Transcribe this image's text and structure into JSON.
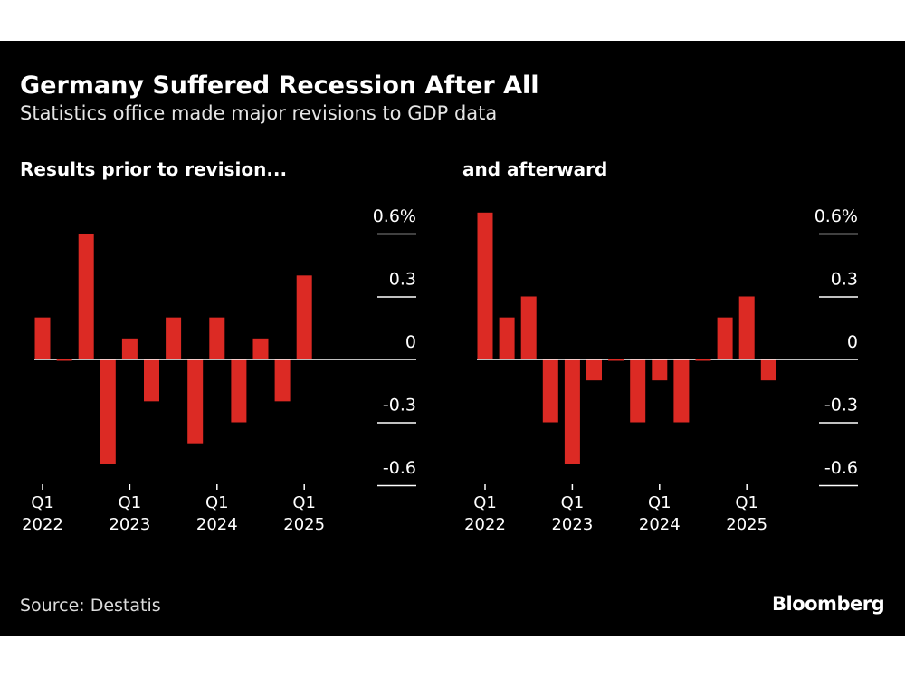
{
  "title": "Germany Suffered Recession After All",
  "subtitle": "Statistics office made major revisions to GDP data",
  "source": "Source: Destatis",
  "logo": "Bloomberg",
  "colors": {
    "bar": "#dc2a24",
    "background": "#000000",
    "text": "#ffffff"
  },
  "chart_data": [
    {
      "type": "bar",
      "title": "Results prior to revision...",
      "categories": [
        "Q1 2022",
        "Q2 2022",
        "Q3 2022",
        "Q4 2022",
        "Q1 2023",
        "Q2 2023",
        "Q3 2023",
        "Q4 2023",
        "Q1 2024",
        "Q2 2024",
        "Q3 2024",
        "Q4 2024",
        "Q1 2025",
        "Q2 2025"
      ],
      "values": [
        0.2,
        0.0,
        0.6,
        -0.5,
        0.1,
        -0.2,
        0.2,
        -0.4,
        0.2,
        -0.3,
        0.1,
        -0.2,
        0.4,
        null
      ],
      "ylim": [
        -0.6,
        0.7
      ],
      "yticks": [
        "0.6%",
        "0.3",
        "0",
        "-0.3",
        "-0.6"
      ],
      "xticks": [
        {
          "q": "Q1",
          "y": "2022"
        },
        {
          "q": "Q1",
          "y": "2023"
        },
        {
          "q": "Q1",
          "y": "2024"
        },
        {
          "q": "Q1",
          "y": "2025"
        }
      ]
    },
    {
      "type": "bar",
      "title": "and afterward",
      "categories": [
        "Q1 2022",
        "Q2 2022",
        "Q3 2022",
        "Q4 2022",
        "Q1 2023",
        "Q2 2023",
        "Q3 2023",
        "Q4 2023",
        "Q1 2024",
        "Q2 2024",
        "Q3 2024",
        "Q4 2024",
        "Q1 2025",
        "Q2 2025"
      ],
      "values": [
        0.7,
        0.2,
        0.3,
        -0.3,
        -0.5,
        -0.1,
        0.0,
        -0.3,
        -0.1,
        -0.3,
        0.0,
        0.2,
        0.3,
        -0.1
      ],
      "ylim": [
        -0.6,
        0.7
      ],
      "yticks": [
        "0.6%",
        "0.3",
        "0",
        "-0.3",
        "-0.6"
      ],
      "xticks": [
        {
          "q": "Q1",
          "y": "2022"
        },
        {
          "q": "Q1",
          "y": "2023"
        },
        {
          "q": "Q1",
          "y": "2024"
        },
        {
          "q": "Q1",
          "y": "2025"
        }
      ]
    }
  ]
}
